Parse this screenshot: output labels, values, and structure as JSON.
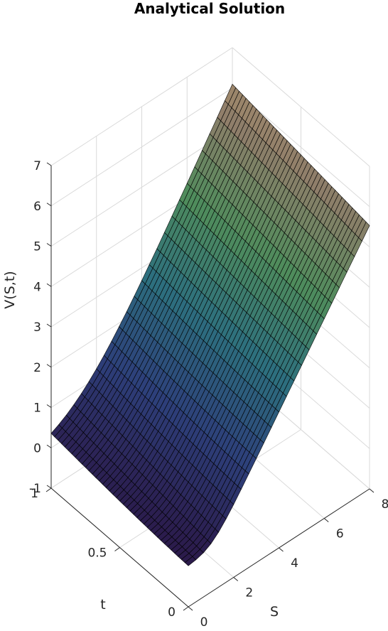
{
  "chart_data": {
    "type": "surface",
    "title": "Analytical Solution",
    "xlabel": "S",
    "ylabel": "t",
    "zlabel": "V(S,t)",
    "xlim": [
      0,
      8
    ],
    "ylim": [
      0,
      1
    ],
    "zlim": [
      -1,
      7
    ],
    "xticks": [
      "0",
      "2",
      "4",
      "6",
      "8"
    ],
    "yticks": [
      "0",
      "0.5",
      "1"
    ],
    "zticks": [
      "-1",
      "0",
      "1",
      "2",
      "3",
      "4",
      "5",
      "6",
      "7"
    ],
    "grid": true,
    "surface": {
      "description_of_values": "V(S,t) ~ 0 for S near 0, rising approximately linearly with S; smooth near strike at t=0",
      "corner_values": [
        {
          "S": 0,
          "t": 0,
          "V": 0
        },
        {
          "S": 8,
          "t": 0,
          "V": 6
        },
        {
          "S": 0,
          "t": 1,
          "V": 0
        },
        {
          "S": 8,
          "t": 1,
          "V": 7
        }
      ]
    },
    "colormap": [
      "#2b1a4a",
      "#2d3f7a",
      "#2d6f7e",
      "#4f8c5c",
      "#8f7e6a",
      "#c4a070"
    ]
  }
}
